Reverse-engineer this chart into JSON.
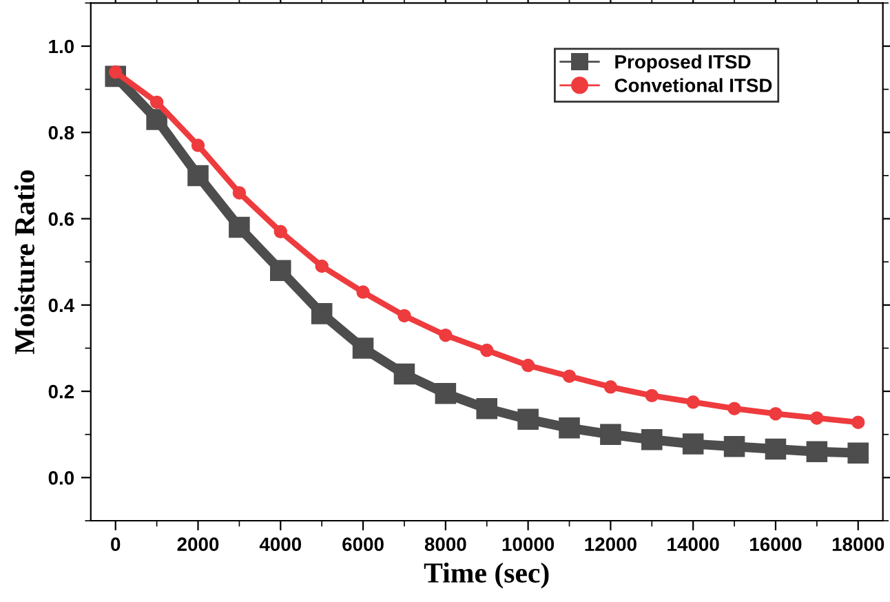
{
  "chart_data": {
    "type": "line",
    "xlabel": "Time (sec)",
    "ylabel": "Moisture Ratio",
    "x": [
      0,
      1000,
      2000,
      3000,
      4000,
      5000,
      6000,
      7000,
      8000,
      9000,
      10000,
      11000,
      12000,
      13000,
      14000,
      15000,
      16000,
      17000,
      18000
    ],
    "series": [
      {
        "name": "Proposed ITSD",
        "color": "#4d4d4d",
        "marker": "square",
        "values": [
          0.93,
          0.83,
          0.7,
          0.58,
          0.48,
          0.38,
          0.3,
          0.24,
          0.195,
          0.16,
          0.135,
          0.115,
          0.1,
          0.088,
          0.078,
          0.072,
          0.066,
          0.06,
          0.057
        ]
      },
      {
        "name": "Convetional ITSD",
        "color": "#ee3b3e",
        "marker": "circle",
        "values": [
          0.94,
          0.87,
          0.77,
          0.66,
          0.57,
          0.49,
          0.43,
          0.375,
          0.33,
          0.295,
          0.26,
          0.235,
          0.21,
          0.19,
          0.175,
          0.16,
          0.148,
          0.138,
          0.128
        ]
      }
    ],
    "xlim": [
      -600,
      18600
    ],
    "ylim": [
      -0.1,
      1.1
    ],
    "xticks": [
      0,
      2000,
      4000,
      6000,
      8000,
      10000,
      12000,
      14000,
      16000,
      18000
    ],
    "yticks": [
      {
        "value": 0,
        "label": "0.0"
      },
      {
        "value": 0.2,
        "label": "0.2"
      },
      {
        "value": 0.4,
        "label": "0.4"
      },
      {
        "value": 0.6,
        "label": "0.6"
      },
      {
        "value": 0.8,
        "label": "0.8"
      },
      {
        "value": 1.0,
        "label": "1.0"
      }
    ],
    "grid": false,
    "legend": "top right",
    "line_style": "solid"
  }
}
